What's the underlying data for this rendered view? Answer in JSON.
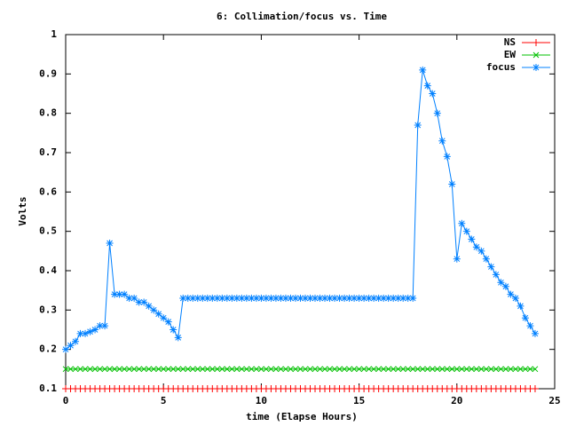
{
  "chart_data": {
    "type": "line",
    "title": "6: Collimation/focus vs. Time",
    "x_label": "time (Elapse Hours)",
    "y_label": "Volts",
    "x": [
      0,
      0.25,
      0.5,
      0.75,
      1,
      1.25,
      1.5,
      1.75,
      2,
      2.25,
      2.5,
      2.75,
      3,
      3.25,
      3.5,
      3.75,
      4,
      4.25,
      4.5,
      4.75,
      5,
      5.25,
      5.5,
      5.75,
      6,
      6.25,
      6.5,
      6.75,
      7,
      7.25,
      7.5,
      7.75,
      8,
      8.25,
      8.5,
      8.75,
      9,
      9.25,
      9.5,
      9.75,
      10,
      10.25,
      10.5,
      10.75,
      11,
      11.25,
      11.5,
      11.75,
      12,
      12.25,
      12.5,
      12.75,
      13,
      13.25,
      13.5,
      13.75,
      14,
      14.25,
      14.5,
      14.75,
      15,
      15.25,
      15.5,
      15.75,
      16,
      16.25,
      16.5,
      16.75,
      17,
      17.25,
      17.5,
      17.75,
      18,
      18.25,
      18.5,
      18.75,
      19,
      19.25,
      19.5,
      19.75,
      20,
      20.25,
      20.5,
      20.75,
      21,
      21.25,
      21.5,
      21.75,
      22,
      22.25,
      22.5,
      22.75,
      23,
      23.25,
      23.5,
      23.75,
      24
    ],
    "series": [
      {
        "name": "NS",
        "color": "#ff0000",
        "marker": "plus",
        "values": [
          0.1,
          0.1,
          0.1,
          0.1,
          0.1,
          0.1,
          0.1,
          0.1,
          0.1,
          0.1,
          0.1,
          0.1,
          0.1,
          0.1,
          0.1,
          0.1,
          0.1,
          0.1,
          0.1,
          0.1,
          0.1,
          0.1,
          0.1,
          0.1,
          0.1,
          0.1,
          0.1,
          0.1,
          0.1,
          0.1,
          0.1,
          0.1,
          0.1,
          0.1,
          0.1,
          0.1,
          0.1,
          0.1,
          0.1,
          0.1,
          0.1,
          0.1,
          0.1,
          0.1,
          0.1,
          0.1,
          0.1,
          0.1,
          0.1,
          0.1,
          0.1,
          0.1,
          0.1,
          0.1,
          0.1,
          0.1,
          0.1,
          0.1,
          0.1,
          0.1,
          0.1,
          0.1,
          0.1,
          0.1,
          0.1,
          0.1,
          0.1,
          0.1,
          0.1,
          0.1,
          0.1,
          0.1,
          0.1,
          0.1,
          0.1,
          0.1,
          0.1,
          0.1,
          0.1,
          0.1,
          0.1,
          0.1,
          0.1,
          0.1,
          0.1,
          0.1,
          0.1,
          0.1,
          0.1,
          0.1,
          0.1,
          0.1,
          0.1,
          0.1,
          0.1,
          0.1,
          0.1
        ]
      },
      {
        "name": "EW",
        "color": "#00c000",
        "marker": "cross",
        "values": [
          0.15,
          0.15,
          0.15,
          0.15,
          0.15,
          0.15,
          0.15,
          0.15,
          0.15,
          0.15,
          0.15,
          0.15,
          0.15,
          0.15,
          0.15,
          0.15,
          0.15,
          0.15,
          0.15,
          0.15,
          0.15,
          0.15,
          0.15,
          0.15,
          0.15,
          0.15,
          0.15,
          0.15,
          0.15,
          0.15,
          0.15,
          0.15,
          0.15,
          0.15,
          0.15,
          0.15,
          0.15,
          0.15,
          0.15,
          0.15,
          0.15,
          0.15,
          0.15,
          0.15,
          0.15,
          0.15,
          0.15,
          0.15,
          0.15,
          0.15,
          0.15,
          0.15,
          0.15,
          0.15,
          0.15,
          0.15,
          0.15,
          0.15,
          0.15,
          0.15,
          0.15,
          0.15,
          0.15,
          0.15,
          0.15,
          0.15,
          0.15,
          0.15,
          0.15,
          0.15,
          0.15,
          0.15,
          0.15,
          0.15,
          0.15,
          0.15,
          0.15,
          0.15,
          0.15,
          0.15,
          0.15,
          0.15,
          0.15,
          0.15,
          0.15,
          0.15,
          0.15,
          0.15,
          0.15,
          0.15,
          0.15,
          0.15,
          0.15,
          0.15,
          0.15,
          0.15,
          0.15
        ]
      },
      {
        "name": "focus",
        "color": "#0080ff",
        "marker": "star",
        "values": [
          0.2,
          0.21,
          0.22,
          0.24,
          0.24,
          0.245,
          0.25,
          0.26,
          0.26,
          0.47,
          0.34,
          0.34,
          0.34,
          0.33,
          0.33,
          0.32,
          0.32,
          0.31,
          0.3,
          0.29,
          0.28,
          0.27,
          0.25,
          0.23,
          0.33,
          0.33,
          0.33,
          0.33,
          0.33,
          0.33,
          0.33,
          0.33,
          0.33,
          0.33,
          0.33,
          0.33,
          0.33,
          0.33,
          0.33,
          0.33,
          0.33,
          0.33,
          0.33,
          0.33,
          0.33,
          0.33,
          0.33,
          0.33,
          0.33,
          0.33,
          0.33,
          0.33,
          0.33,
          0.33,
          0.33,
          0.33,
          0.33,
          0.33,
          0.33,
          0.33,
          0.33,
          0.33,
          0.33,
          0.33,
          0.33,
          0.33,
          0.33,
          0.33,
          0.33,
          0.33,
          0.33,
          0.33,
          0.77,
          0.91,
          0.87,
          0.85,
          0.8,
          0.73,
          0.69,
          0.62,
          0.43,
          0.52,
          0.5,
          0.48,
          0.46,
          0.45,
          0.43,
          0.41,
          0.39,
          0.37,
          0.36,
          0.34,
          0.33,
          0.31,
          0.28,
          0.26,
          0.24
        ]
      }
    ],
    "xlim": [
      0,
      25
    ],
    "xticks": [
      0,
      5,
      10,
      15,
      20,
      25
    ],
    "ylim": [
      0.1,
      1
    ],
    "yticks": [
      0.1,
      0.2,
      0.3,
      0.4,
      0.5,
      0.6,
      0.7,
      0.8,
      0.9,
      1
    ],
    "legend": "top-right"
  }
}
